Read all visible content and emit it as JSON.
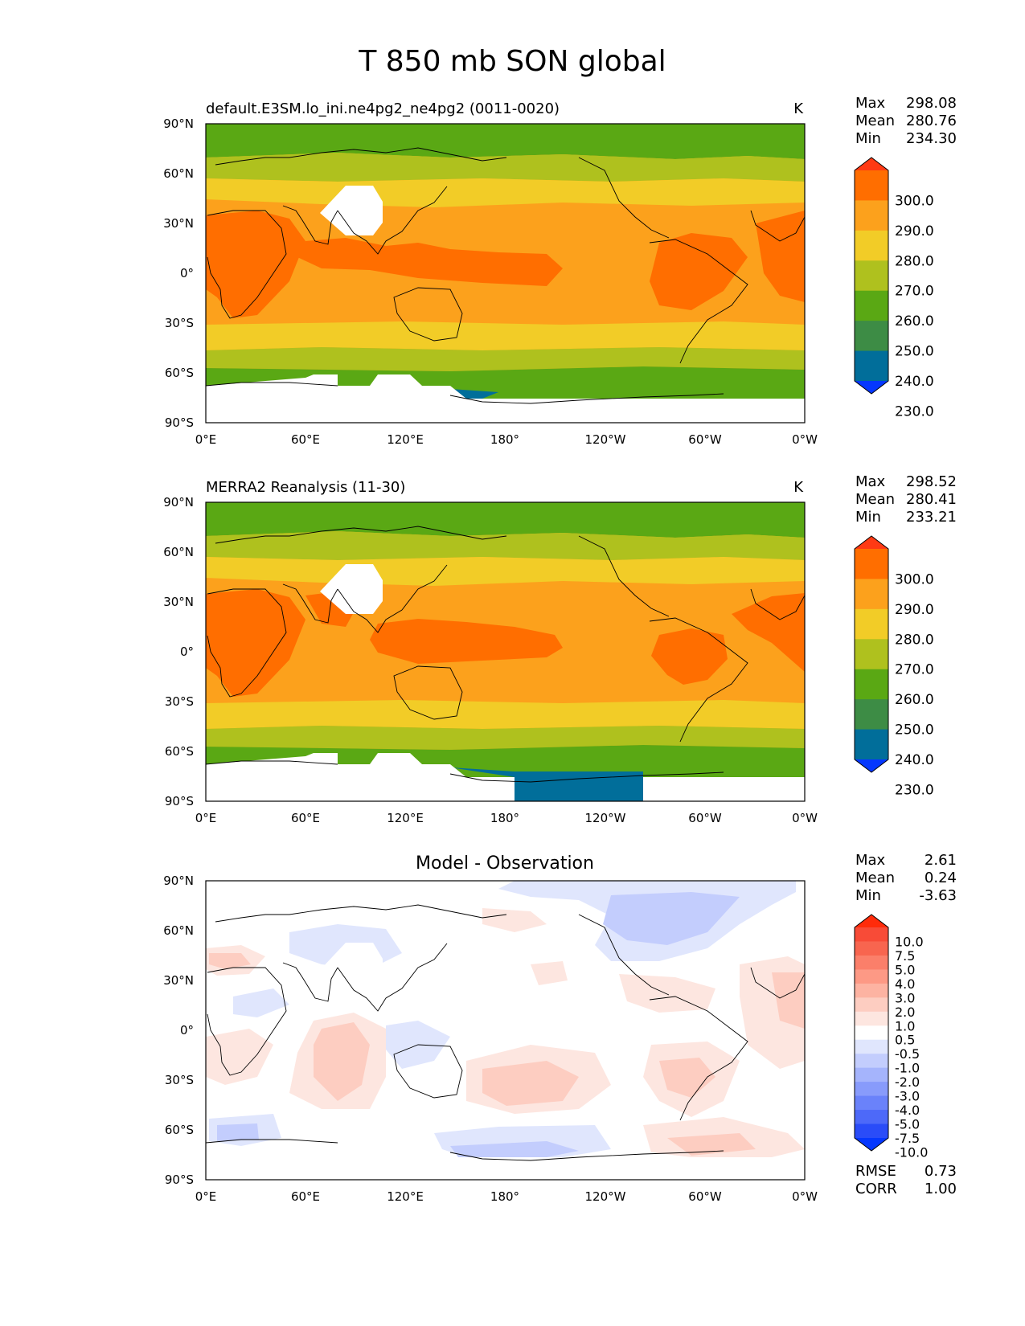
{
  "title": "T 850 mb SON global",
  "chart_data": [
    {
      "type": "heatmap",
      "panel": "test",
      "left_title": "default.E3SM.lo_ini.ne4pg2_ne4pg2 (0011-0020)",
      "units": "K",
      "stats": {
        "Max": "298.08",
        "Mean": "280.76",
        "Min": "234.30"
      },
      "x_ticks": [
        "0°E",
        "60°E",
        "120°E",
        "180°",
        "120°W",
        "60°W",
        "0°W"
      ],
      "y_ticks": [
        "90°N",
        "60°N",
        "30°N",
        "0°",
        "30°S",
        "60°S",
        "90°S"
      ],
      "xlim": [
        0,
        360
      ],
      "ylim": [
        -90,
        90
      ],
      "colorbar": {
        "levels": [
          "300.0",
          "290.0",
          "280.0",
          "270.0",
          "260.0",
          "250.0",
          "240.0",
          "230.0"
        ],
        "colors": [
          "#ff3a14",
          "#ff6e00",
          "#fca11c",
          "#f2cc27",
          "#afc11e",
          "#5aa814",
          "#3d8c45",
          "#016e9a",
          "#0537fe"
        ]
      }
    },
    {
      "type": "heatmap",
      "panel": "reference",
      "left_title": "MERRA2 Reanalysis (11-30)",
      "units": "K",
      "stats": {
        "Max": "298.52",
        "Mean": "280.41",
        "Min": "233.21"
      },
      "x_ticks": [
        "0°E",
        "60°E",
        "120°E",
        "180°",
        "120°W",
        "60°W",
        "0°W"
      ],
      "y_ticks": [
        "90°N",
        "60°N",
        "30°N",
        "0°",
        "30°S",
        "60°S",
        "90°S"
      ],
      "xlim": [
        0,
        360
      ],
      "ylim": [
        -90,
        90
      ],
      "colorbar": {
        "levels": [
          "300.0",
          "290.0",
          "280.0",
          "270.0",
          "260.0",
          "250.0",
          "240.0",
          "230.0"
        ],
        "colors": [
          "#ff3a14",
          "#ff6e00",
          "#fca11c",
          "#f2cc27",
          "#afc11e",
          "#5aa814",
          "#3d8c45",
          "#016e9a",
          "#0537fe"
        ]
      }
    },
    {
      "type": "heatmap",
      "panel": "difference",
      "center_title": "Model - Observation",
      "stats": {
        "Max": "2.61",
        "Mean": "0.24",
        "Min": "-3.63"
      },
      "metrics": {
        "RMSE": "0.73",
        "CORR": "1.00"
      },
      "x_ticks": [
        "0°E",
        "60°E",
        "120°E",
        "180°",
        "120°W",
        "60°W",
        "0°W"
      ],
      "y_ticks": [
        "90°N",
        "60°N",
        "30°N",
        "0°",
        "30°S",
        "60°S",
        "90°S"
      ],
      "xlim": [
        0,
        360
      ],
      "ylim": [
        -90,
        90
      ],
      "colorbar": {
        "levels": [
          "10.0",
          "7.5",
          "5.0",
          "4.0",
          "3.0",
          "2.0",
          "1.0",
          "0.5",
          "-0.5",
          "-1.0",
          "-2.0",
          "-3.0",
          "-4.0",
          "-5.0",
          "-7.5",
          "-10.0"
        ],
        "colors": [
          "#ff2b0a",
          "#f84b37",
          "#f8654f",
          "#fb7f6a",
          "#fd9985",
          "#fdb3a2",
          "#fdcdc1",
          "#fde6e0",
          "#ffffff",
          "#e0e6fd",
          "#c3cdfd",
          "#a5b4fc",
          "#889bfb",
          "#6a82fa",
          "#4d69f9",
          "#2a4cf8",
          "#0537fe"
        ]
      }
    }
  ]
}
